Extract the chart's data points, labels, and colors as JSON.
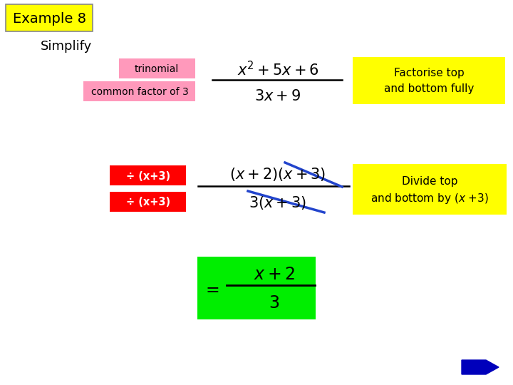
{
  "title": "Example 8",
  "subtitle": "Simplify",
  "bg_color": "#ffffff",
  "title_box_color": "#ffff00",
  "title_box_edge": "#aaaaaa",
  "pink_color": "#ff99bb",
  "red_color": "#ff0000",
  "yellow_color": "#ffff00",
  "green_color": "#00ee00",
  "blue_arrow_color": "#0000bb",
  "label_trinomial": "trinomial",
  "label_common": "common factor of 3",
  "label_div1": "÷ (x+3)",
  "label_div2": "÷ (x+3)",
  "label_factorise_1": "Factorise top",
  "label_factorise_2": "and bottom fully",
  "label_divide_1": "Divide top",
  "label_divide_2": "and bottom by (x +3)"
}
